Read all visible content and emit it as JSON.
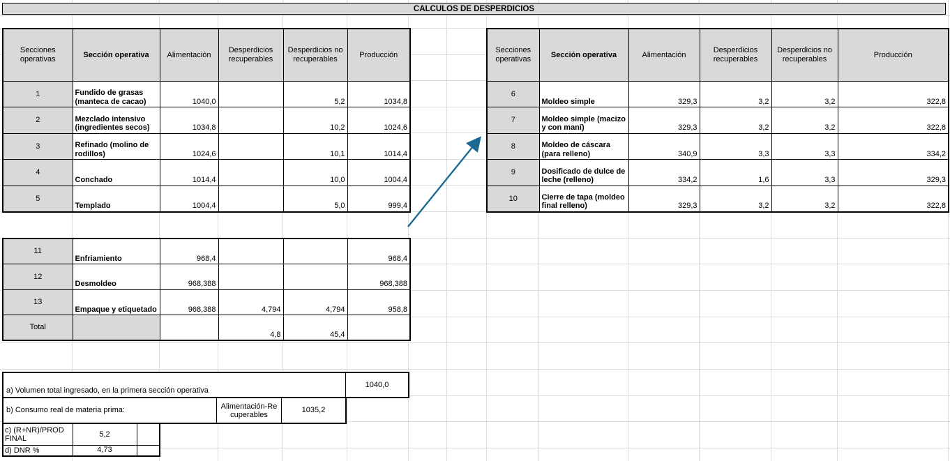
{
  "title": "CALCULOS DE DESPERDICIOS",
  "columns": [
    "Secciones operativas",
    "Sección operativa",
    "Alimentación",
    "Desperdicios recuperables",
    "Desperdicios no recuperables",
    "Producción"
  ],
  "tables": {
    "left": {
      "rows": [
        [
          "1",
          "Fundido de grasas (manteca de cacao)",
          "1040,0",
          "",
          "5,2",
          "1034,8"
        ],
        [
          "2",
          "Mezclado intensivo (ingredientes secos)",
          "1034,8",
          "",
          "10,2",
          "1024,6"
        ],
        [
          "3",
          "Refinado (molino de rodillos)",
          "1024,6",
          "",
          "10,1",
          "1014,4"
        ],
        [
          "4",
          "Conchado",
          "1014,4",
          "",
          "10,0",
          "1004,4"
        ],
        [
          "5",
          "Templado",
          "1004,4",
          "",
          "5,0",
          "999,4"
        ]
      ]
    },
    "right": {
      "rows": [
        [
          "6",
          "Moldeo simple",
          "329,3",
          "3,2",
          "3,2",
          "322,8"
        ],
        [
          "7",
          "Moldeo simple (macizo y con maní)",
          "329,3",
          "3,2",
          "3,2",
          "322,8"
        ],
        [
          "8",
          "Moldeo de cáscara (para relleno)",
          "340,9",
          "3,3",
          "3,3",
          "334,2"
        ],
        [
          "9",
          "Dosificado de dulce de leche (relleno)",
          "334,2",
          "1,6",
          "3,3",
          "329,3"
        ],
        [
          "10",
          "Cierre de tapa (moldeo final relleno)",
          "329,3",
          "3,2",
          "3,2",
          "322,8"
        ]
      ]
    },
    "lower": {
      "rows": [
        [
          "11",
          "Enfriamiento",
          "968,4",
          "",
          "",
          "968,4"
        ],
        [
          "12",
          "Desmoldeo",
          "968,388",
          "",
          "",
          "968,388"
        ],
        [
          "13",
          "Empaque y etiquetado",
          "968,388",
          "4,794",
          "4,794",
          "958,8"
        ],
        [
          "Total",
          "",
          "",
          "4,8",
          "45,4",
          ""
        ]
      ]
    }
  },
  "summary": {
    "a_label": "a) Volumen total ingresado, en la primera sección operativa",
    "a_value": "1040,0",
    "b_label": "b) Consumo real de materia prima:",
    "b_method": "Alimentación-Recuperables",
    "b_value": "1035,2",
    "c_label": "c) (R+NR)/PROD FINAL",
    "c_value": "5,2",
    "d_label": "d) DNR %",
    "d_value": "4,73"
  },
  "colors": {
    "header_fill": "#d9d9d9",
    "table_border": "#000000",
    "gridline": "#dcdcdc",
    "arrow": "#1c6a90"
  }
}
